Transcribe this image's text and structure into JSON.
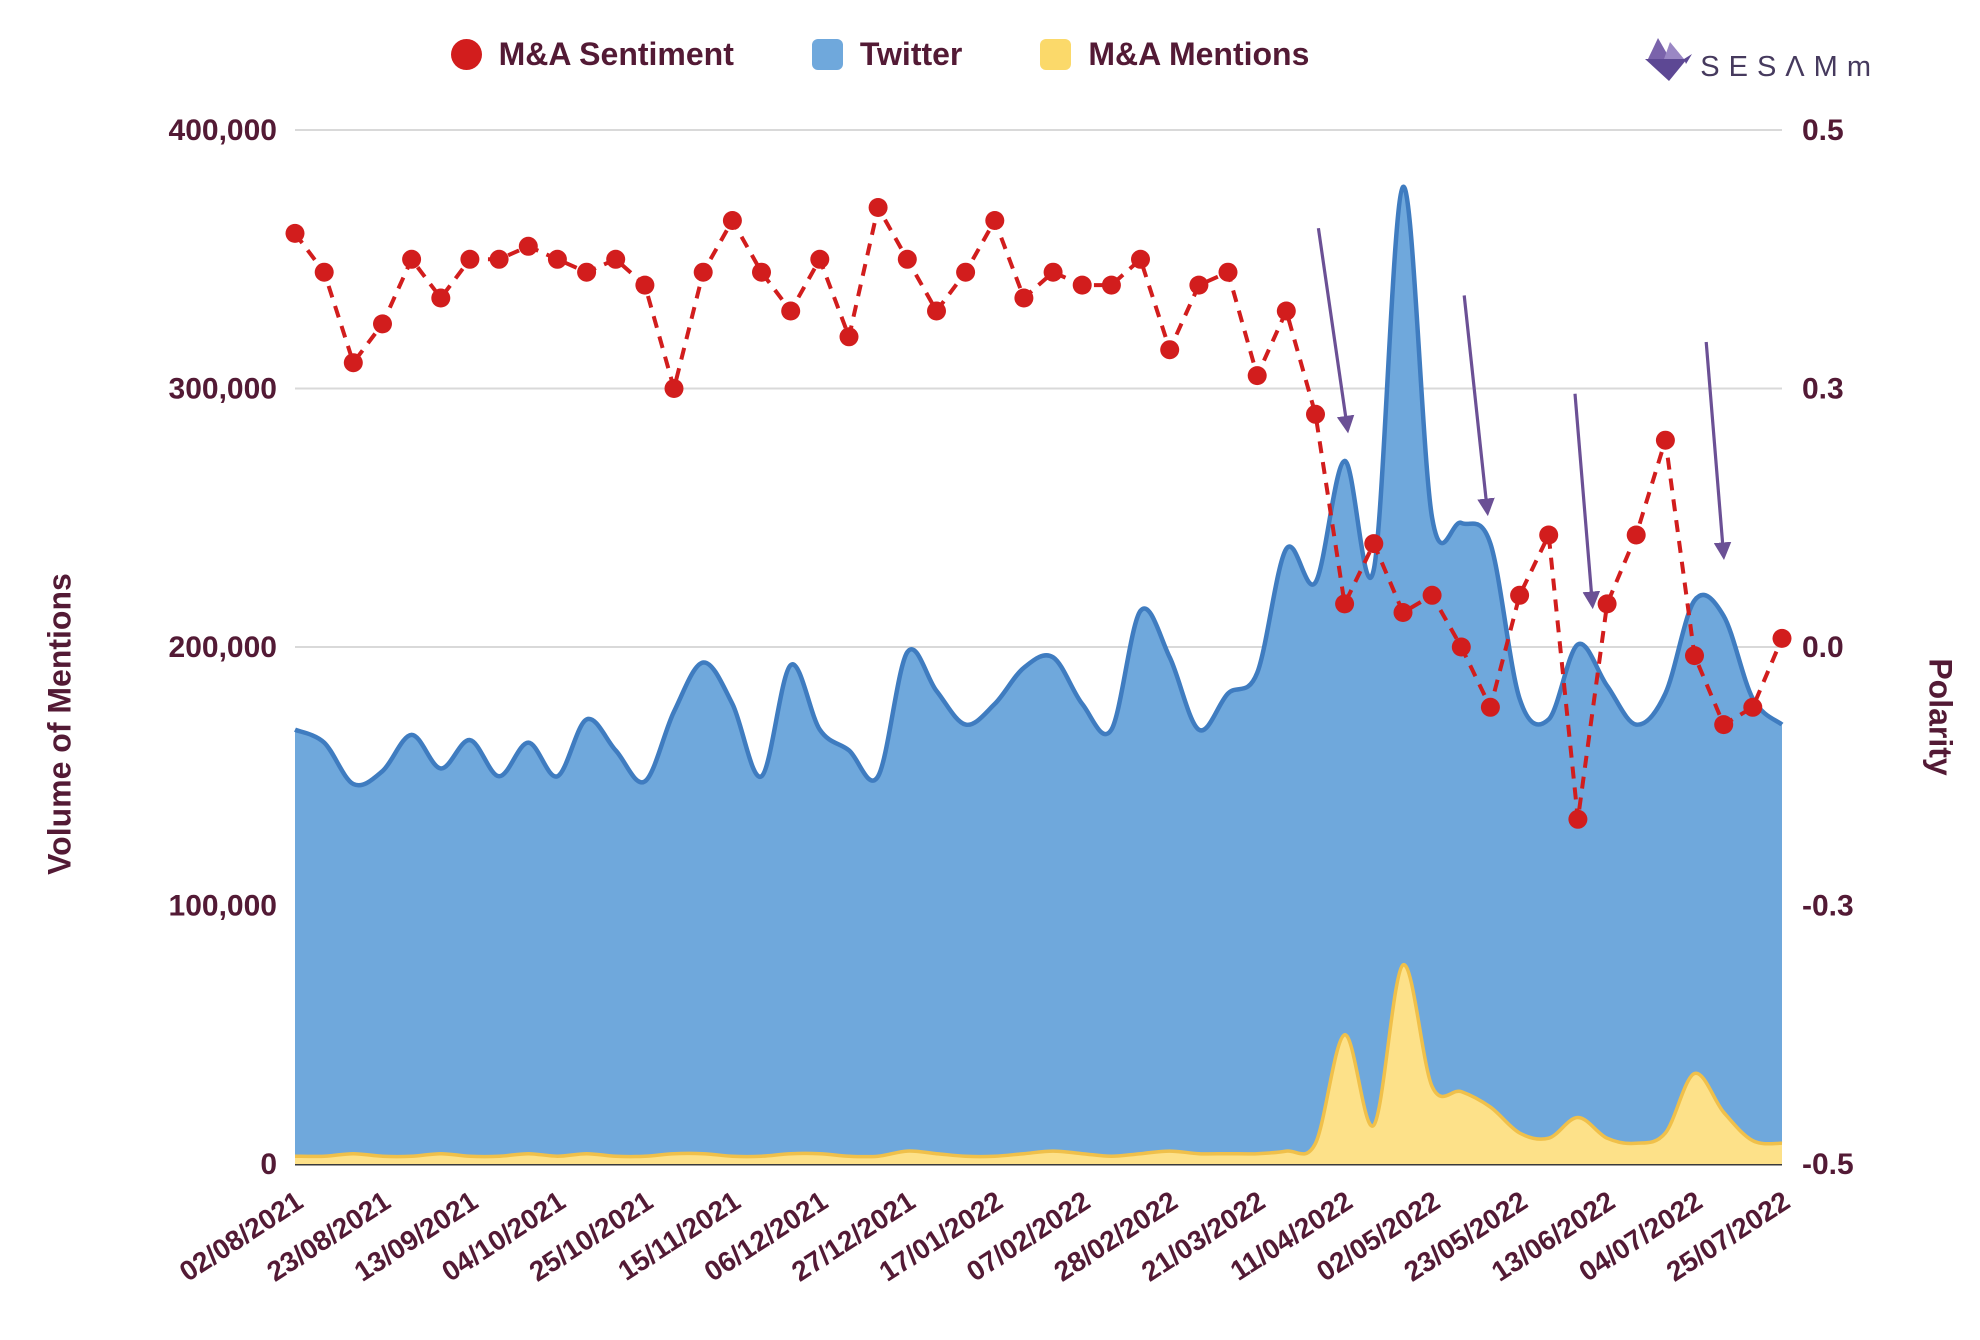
{
  "legend": {
    "items": [
      {
        "label": "M&A Sentiment",
        "color": "#d21d1d",
        "swatch": "circle"
      },
      {
        "label": "Twitter",
        "color": "#6fa8dc",
        "swatch": "square"
      },
      {
        "label": "M&A Mentions",
        "color": "#fbd96a",
        "swatch": "square"
      }
    ]
  },
  "logo": {
    "text": "SESΛMm"
  },
  "chart_data": {
    "type": "area",
    "description": "Weekly volume of mentions (stacked look: Twitter blue area, M&A Mentions yellow area, left axis) with M&A Sentiment polarity as red dashed dotted line (right axis); purple arrows annotate volume peaks.",
    "x_points": 52,
    "x_tick_labels": [
      "02/08/2021",
      "23/08/2021",
      "13/09/2021",
      "04/10/2021",
      "25/10/2021",
      "15/11/2021",
      "06/12/2021",
      "27/12/2021",
      "17/01/2022",
      "07/02/2022",
      "28/02/2022",
      "21/03/2022",
      "11/04/2022",
      "02/05/2022",
      "23/05/2022",
      "13/06/2022",
      "04/07/2022",
      "25/07/2022"
    ],
    "x_tick_positions": [
      0,
      3,
      6,
      9,
      12,
      15,
      18,
      21,
      24,
      27,
      30,
      33,
      36,
      39,
      42,
      45,
      48,
      51
    ],
    "left_axis": {
      "title": "Volume of Mentions",
      "range": [
        0,
        400000
      ],
      "ticks": [
        0,
        100000,
        200000,
        300000,
        400000
      ],
      "tick_labels": [
        "0",
        "100,000",
        "200,000",
        "300,000",
        "400,000"
      ]
    },
    "right_axis": {
      "title": "Polarity",
      "tick_values": [
        -0.5,
        -0.3,
        0,
        0.3,
        0.5
      ],
      "tick_labels": [
        "-0.5",
        "-0.3",
        "0.0",
        "0.3",
        "0.5"
      ]
    },
    "style": {
      "grid_color": "#d9d9d9",
      "axis_line_color": "#3a3a3a",
      "text_color": "#531a35"
    },
    "series": [
      {
        "name": "Twitter",
        "kind": "area",
        "axis": "left",
        "fill": "#6fa8dc",
        "stroke": "#3f7cc0",
        "values": [
          168000,
          163000,
          147000,
          152000,
          166000,
          153000,
          164000,
          150000,
          163000,
          150000,
          172000,
          160000,
          148000,
          175000,
          194000,
          178000,
          150000,
          193000,
          168000,
          160000,
          150000,
          198000,
          183000,
          170000,
          178000,
          192000,
          196000,
          178000,
          168000,
          214000,
          196000,
          168000,
          182000,
          190000,
          238000,
          225000,
          272000,
          230000,
          378000,
          250000,
          248000,
          240000,
          180000,
          172000,
          201000,
          185000,
          170000,
          182000,
          218000,
          212000,
          180000,
          170000
        ]
      },
      {
        "name": "M&A Mentions",
        "kind": "area",
        "axis": "left",
        "fill": "#fde189",
        "stroke": "#f0c04a",
        "values": [
          3000,
          3000,
          4000,
          3000,
          3000,
          4000,
          3000,
          3000,
          4000,
          3000,
          4000,
          3000,
          3000,
          4000,
          4000,
          3000,
          3000,
          4000,
          4000,
          3000,
          3000,
          5000,
          4000,
          3000,
          3000,
          4000,
          5000,
          4000,
          3000,
          4000,
          5000,
          4000,
          4000,
          4000,
          5000,
          8000,
          50000,
          15000,
          77000,
          30000,
          28000,
          22000,
          12000,
          10000,
          18000,
          10000,
          8000,
          12000,
          35000,
          20000,
          9000,
          8000
        ]
      },
      {
        "name": "M&A Sentiment",
        "kind": "dashed_line_dots",
        "axis": "right",
        "color": "#d21d1d",
        "values": [
          0.42,
          0.39,
          0.32,
          0.35,
          0.4,
          0.37,
          0.4,
          0.4,
          0.41,
          0.4,
          0.39,
          0.4,
          0.38,
          0.3,
          0.39,
          0.43,
          0.39,
          0.36,
          0.4,
          0.34,
          0.44,
          0.4,
          0.36,
          0.39,
          0.43,
          0.37,
          0.39,
          0.38,
          0.38,
          0.4,
          0.33,
          0.38,
          0.39,
          0.31,
          0.36,
          0.27,
          0.05,
          0.12,
          0.04,
          0.06,
          0.0,
          -0.07,
          0.06,
          0.13,
          -0.2,
          0.05,
          0.13,
          0.24,
          -0.01,
          -0.09,
          -0.07,
          0.01
        ]
      }
    ],
    "annotations": {
      "color": "#6b5095",
      "arrows": [
        {
          "from_week": 35.1,
          "from_value": 362000,
          "to_week": 36.1,
          "to_value": 284000
        },
        {
          "from_week": 40.1,
          "from_value": 336000,
          "to_week": 40.9,
          "to_value": 252000
        },
        {
          "from_week": 43.9,
          "from_value": 298000,
          "to_week": 44.5,
          "to_value": 216000
        },
        {
          "from_week": 48.4,
          "from_value": 318000,
          "to_week": 49.0,
          "to_value": 235000
        }
      ]
    }
  }
}
